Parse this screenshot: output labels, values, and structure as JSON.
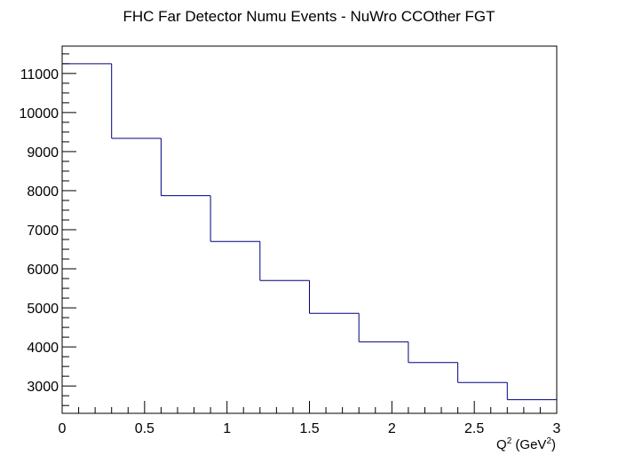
{
  "chart_data": {
    "type": "bar",
    "style": "step-histogram",
    "title": "FHC Far Detector Numu Events - NuWro CCOther FGT",
    "xlabel": "Q",
    "xlabel_sup1": "2",
    "xlabel_mid": " (GeV",
    "xlabel_sup2": "2",
    "xlabel_end": ")",
    "ylabel": "",
    "xlim": [
      0,
      3
    ],
    "ylim": [
      2300,
      11700
    ],
    "bin_edges": [
      0,
      0.3,
      0.6,
      0.9,
      1.2,
      1.5,
      1.8,
      2.1,
      2.4,
      2.7,
      3.0
    ],
    "values": [
      11250,
      9340,
      7870,
      6700,
      5700,
      4860,
      4130,
      3600,
      3090,
      2650
    ],
    "x_ticks": [
      {
        "value": 0,
        "label": "0"
      },
      {
        "value": 0.5,
        "label": "0.5"
      },
      {
        "value": 1,
        "label": "1"
      },
      {
        "value": 1.5,
        "label": "1.5"
      },
      {
        "value": 2,
        "label": "2"
      },
      {
        "value": 2.5,
        "label": "2.5"
      },
      {
        "value": 3,
        "label": "3"
      }
    ],
    "y_ticks": [
      {
        "value": 3000,
        "label": "3000"
      },
      {
        "value": 4000,
        "label": "4000"
      },
      {
        "value": 5000,
        "label": "5000"
      },
      {
        "value": 6000,
        "label": "6000"
      },
      {
        "value": 7000,
        "label": "7000"
      },
      {
        "value": 8000,
        "label": "8000"
      },
      {
        "value": 9000,
        "label": "9000"
      },
      {
        "value": 10000,
        "label": "10000"
      },
      {
        "value": 11000,
        "label": "11000"
      }
    ],
    "line_color": "#000080",
    "axis_color": "#000000",
    "grid": false
  }
}
